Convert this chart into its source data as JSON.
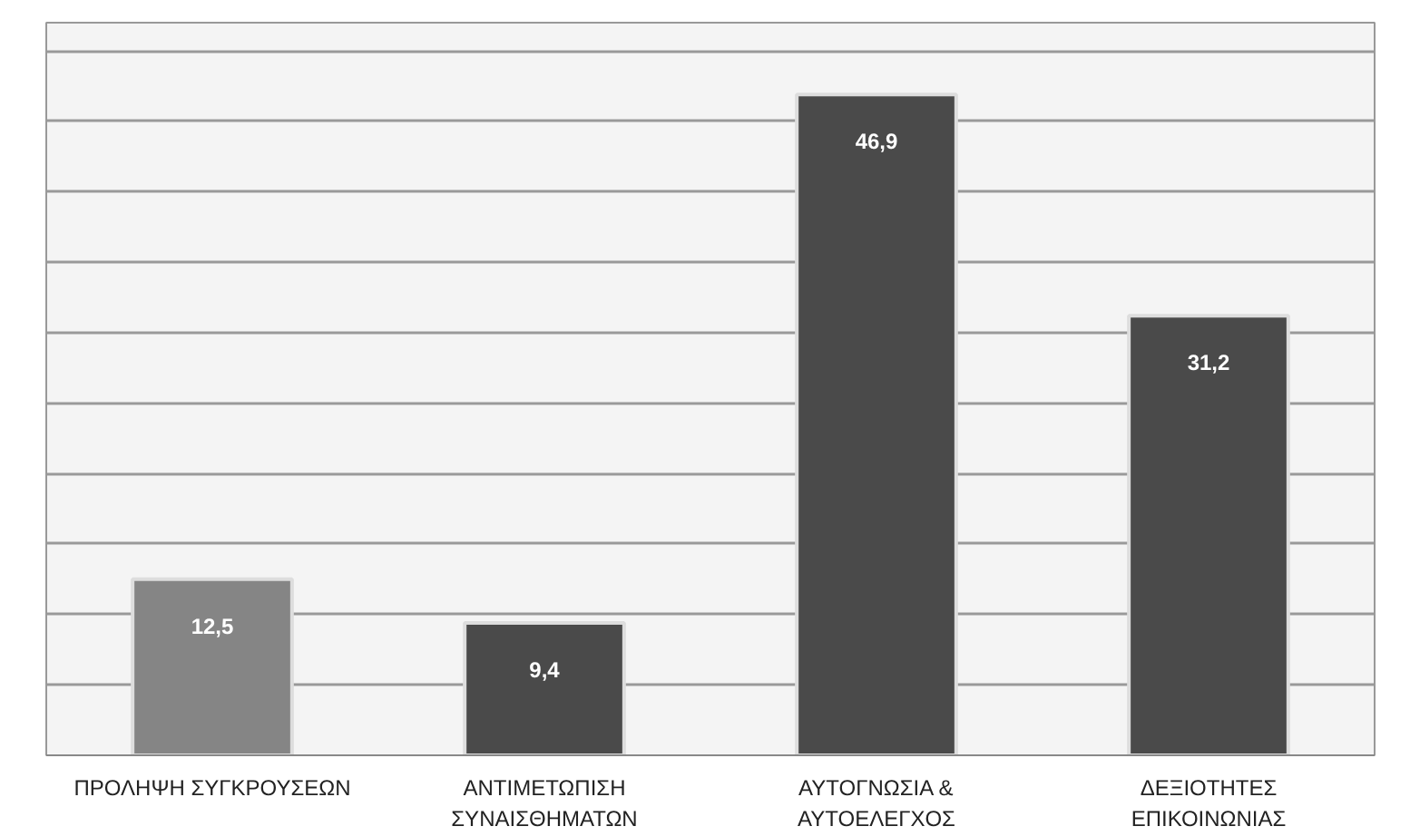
{
  "chart_data": {
    "type": "bar",
    "categories": [
      "ΠΡΟΛΗΨΗ ΣΥΓΚΡΟΥΣΕΩΝ",
      "ΑΝΤΙΜΕΤΩΠΙΣΗ\nΣΥΝΑΙΣΘΗΜΑΤΩΝ",
      "ΑΥΤΟΓΝΩΣΙΑ &\nΑΥΤΟΕΛΕΓΧΟΣ",
      "ΔΕΞΙΟΤΗΤΕΣ\nΕΠΙΚΟΙΝΩΝΙΑΣ"
    ],
    "values": [
      12.5,
      9.4,
      46.9,
      31.2
    ],
    "value_labels": [
      "12,5",
      "9,4",
      "46,9",
      "31,2"
    ],
    "colors": [
      "#858585",
      "#4a4a4a",
      "#4a4a4a",
      "#4a4a4a"
    ],
    "ylim": [
      0,
      52
    ],
    "yticks": [
      {
        "value": 0,
        "label": null
      },
      {
        "value": 5,
        "label": null
      },
      {
        "value": 10,
        "label": null
      },
      {
        "value": 15,
        "label": null
      },
      {
        "value": 20,
        "label": null
      },
      {
        "value": 25,
        "label": null
      },
      {
        "value": 30,
        "label": null
      },
      {
        "value": 35,
        "label": null
      },
      {
        "value": 40,
        "label": null
      },
      {
        "value": 45,
        "label": null
      },
      {
        "value": 50,
        "label": null
      }
    ],
    "tick_labels": "x",
    "grid": "y"
  }
}
